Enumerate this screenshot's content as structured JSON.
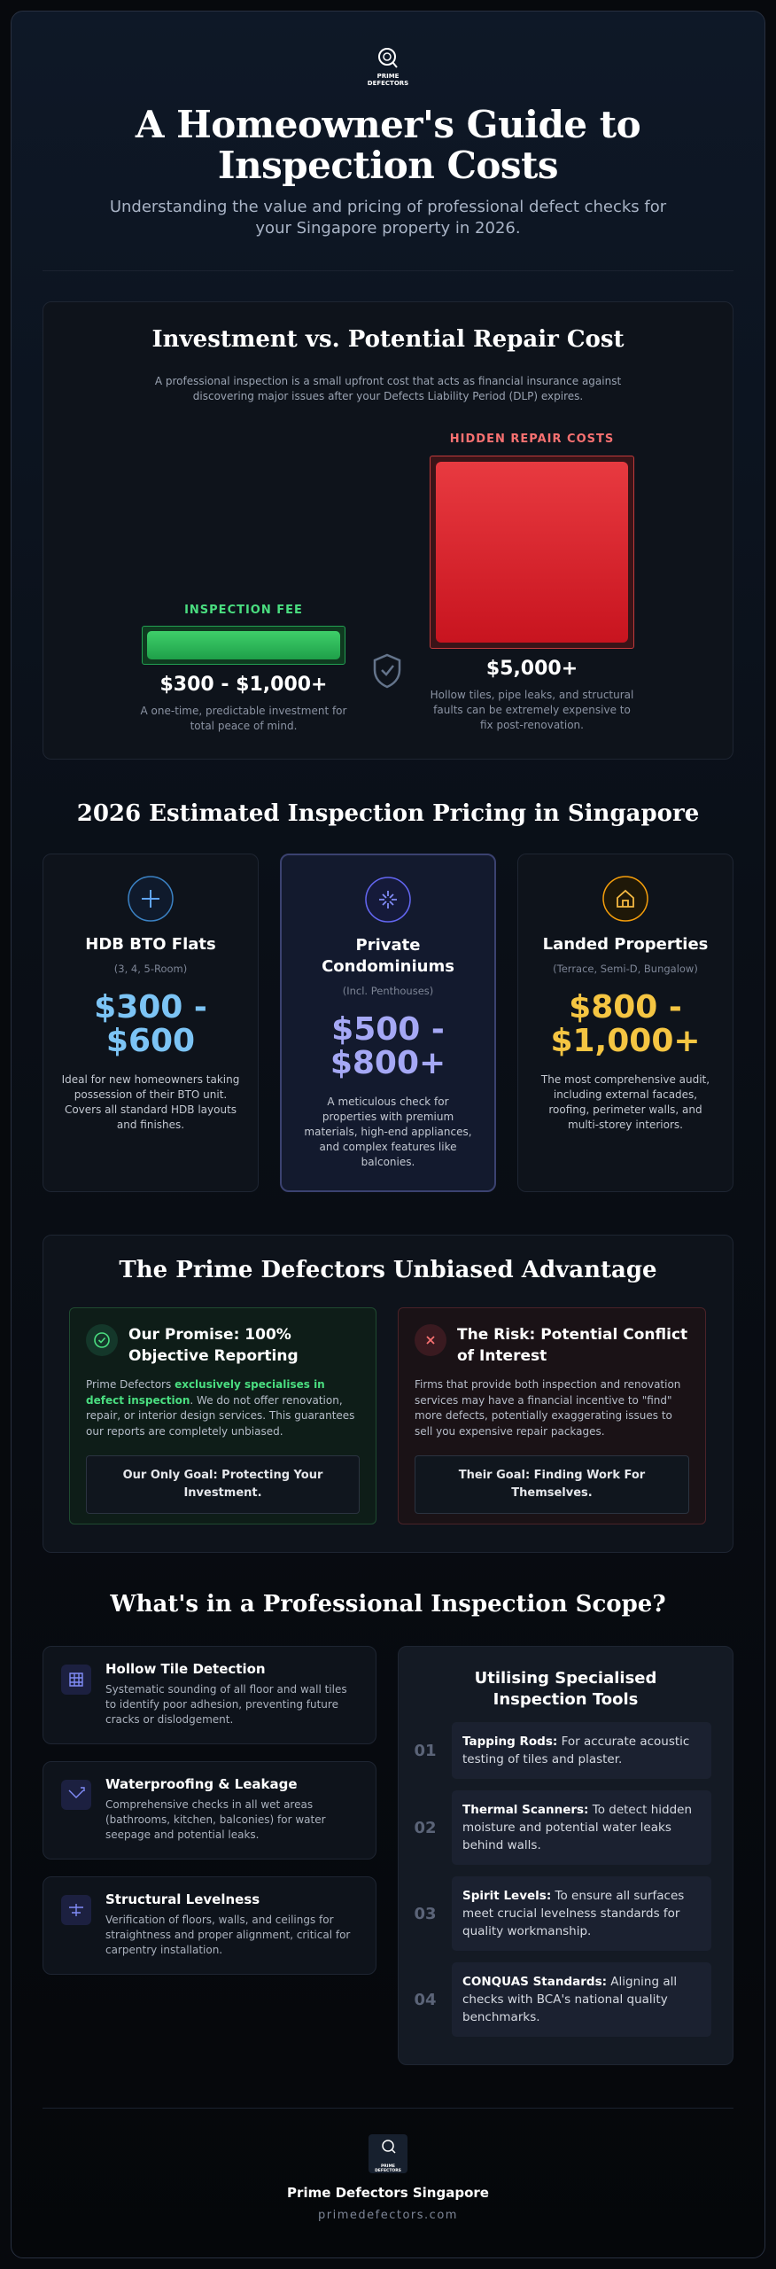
{
  "header": {
    "logo": [
      "PRIME",
      "DEFECTORS"
    ],
    "title": "A Homeowner's Guide to Inspection Costs",
    "subtitle": "Understanding the value and pricing of professional defect checks for your Singapore property in 2026."
  },
  "comparison": {
    "title": "Investment vs. Potential Repair Cost",
    "description": "A professional inspection is a small upfront cost that acts as financial insurance against discovering major issues after your Defects Liability Period (DLP) expires.",
    "fee": {
      "label": "INSPECTION FEE",
      "price": "$300 - $1,000+",
      "note": "A one-time, predictable investment for total peace of mind."
    },
    "repair": {
      "label": "HIDDEN REPAIR COSTS",
      "price": "$5,000+",
      "note": "Hollow tiles, pipe leaks, and structural faults can be extremely expensive to fix post-renovation."
    }
  },
  "pricing": {
    "title": "2026 Estimated Inspection Pricing in Singapore",
    "cards": [
      {
        "title": "HDB BTO Flats",
        "subtitle": "(3, 4, 5-Room)",
        "price": "$300 - $600",
        "description": "Ideal for new homeowners taking possession of their BTO unit. Covers all standard HDB layouts and finishes."
      },
      {
        "title": "Private Condominiums",
        "subtitle": "(Incl. Penthouses)",
        "price": "$500 - $800+",
        "description": "A meticulous check for properties with premium materials, high-end appliances, and complex features like balconies."
      },
      {
        "title": "Landed Properties",
        "subtitle": "(Terrace, Semi-D, Bungalow)",
        "price": "$800 - $1,000+",
        "description": "The most comprehensive audit, including external facades, roofing, perimeter walls, and multi-storey interiors."
      }
    ]
  },
  "advantage": {
    "title": "The Prime Defectors Unbiased Advantage",
    "promise": {
      "heading": "Our Promise: 100% Objective Reporting",
      "body": [
        "Prime Defectors ",
        "exclusively specialises in defect inspection",
        ". We do not offer renovation, repair, or interior design services. This guarantees our reports are completely unbiased."
      ],
      "goal": "Our Only Goal: Protecting Your Investment."
    },
    "risk": {
      "heading": "The Risk: Potential Conflict of Interest",
      "body": "Firms that provide both inspection and renovation services may have a financial incentive to \"find\" more defects, potentially exaggerating issues to sell you expensive repair packages.",
      "goal": "Their Goal: Finding Work For Themselves."
    }
  },
  "scope": {
    "title": "What's in a Professional Inspection Scope?",
    "items": [
      {
        "title": "Hollow Tile Detection",
        "description": "Systematic sounding of all floor and wall tiles to identify poor adhesion, preventing future cracks or dislodgement."
      },
      {
        "title": "Waterproofing & Leakage",
        "description": "Comprehensive checks in all wet areas (bathrooms, kitchen, balconies) for water seepage and potential leaks."
      },
      {
        "title": "Structural Levelness",
        "description": "Verification of floors, walls, and ceilings for straightness and proper alignment, critical for carpentry installation."
      }
    ],
    "tools": {
      "title": "Utilising Specialised Inspection Tools",
      "items": [
        {
          "number": "01",
          "name": "Tapping Rods:",
          "description": " For accurate acoustic testing of tiles and plaster."
        },
        {
          "number": "02",
          "name": "Thermal Scanners:",
          "description": " To detect hidden moisture and potential water leaks behind walls."
        },
        {
          "number": "03",
          "name": "Spirit Levels:",
          "description": " To ensure all surfaces meet crucial levelness standards for quality workmanship."
        },
        {
          "number": "04",
          "name": "CONQUAS Standards:",
          "description": " Aligning all checks with BCA's national quality benchmarks."
        }
      ]
    }
  },
  "footer": {
    "name": "Prime Defectors Singapore",
    "url": "primedefectors.com"
  }
}
